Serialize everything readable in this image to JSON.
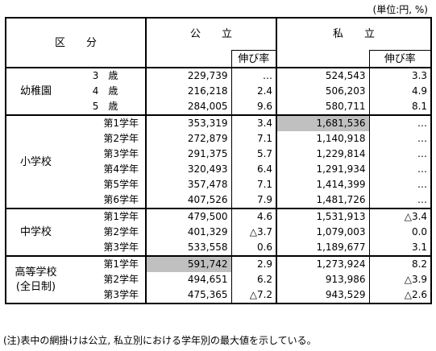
{
  "unit_note": "(単位:円, %)",
  "header": {
    "category": "区　　分",
    "public": "公　　立",
    "private": "私　　立",
    "growth_rate": "伸び率"
  },
  "groups": [
    {
      "label": "幼稚園",
      "rows": [
        {
          "grade": "3　歳",
          "public": "229,739",
          "public_rate": "…",
          "private": "524,543",
          "private_rate": "3.3"
        },
        {
          "grade": "4　歳",
          "public": "216,218",
          "public_rate": "2.4",
          "private": "506,203",
          "private_rate": "4.9"
        },
        {
          "grade": "5　歳",
          "public": "284,005",
          "public_rate": "9.6",
          "private": "580,711",
          "private_rate": "8.1"
        }
      ]
    },
    {
      "label": "小学校",
      "rows": [
        {
          "grade": "第1学年",
          "public": "353,319",
          "public_rate": "3.4",
          "private": "1,681,536",
          "private_rate": "…"
        },
        {
          "grade": "第2学年",
          "public": "272,879",
          "public_rate": "7.1",
          "private": "1,140,918",
          "private_rate": "…"
        },
        {
          "grade": "第3学年",
          "public": "291,375",
          "public_rate": "5.7",
          "private": "1,229,814",
          "private_rate": "…"
        },
        {
          "grade": "第4学年",
          "public": "320,493",
          "public_rate": "6.4",
          "private": "1,291,934",
          "private_rate": "…"
        },
        {
          "grade": "第5学年",
          "public": "357,478",
          "public_rate": "7.1",
          "private": "1,414,399",
          "private_rate": "…"
        },
        {
          "grade": "第6学年",
          "public": "407,526",
          "public_rate": "7.9",
          "private": "1,481,726",
          "private_rate": "…"
        }
      ]
    },
    {
      "label": "中学校",
      "rows": [
        {
          "grade": "第1学年",
          "public": "479,500",
          "public_rate": "4.6",
          "private": "1,531,913",
          "private_rate": "△3.4"
        },
        {
          "grade": "第2学年",
          "public": "401,329",
          "public_rate": "△3.7",
          "private": "1,079,003",
          "private_rate": "0.0"
        },
        {
          "grade": "第3学年",
          "public": "533,558",
          "public_rate": "0.6",
          "private": "1,189,677",
          "private_rate": "3.1"
        }
      ]
    },
    {
      "label": "高等学校",
      "label2": "(全日制)",
      "rows": [
        {
          "grade": "第1学年",
          "public": "591,742",
          "public_rate": "2.9",
          "private": "1,273,924",
          "private_rate": "8.2"
        },
        {
          "grade": "第2学年",
          "public": "494,651",
          "public_rate": "6.2",
          "private": "913,986",
          "private_rate": "△3.9"
        },
        {
          "grade": "第3学年",
          "public": "475,365",
          "public_rate": "△7.2",
          "private": "943,529",
          "private_rate": "△2.6"
        }
      ]
    }
  ],
  "highlight_color": "#c0c0c0",
  "footnote": "(注)表中の網掛けは公立, 私立別における学年別の最大値を示している。"
}
